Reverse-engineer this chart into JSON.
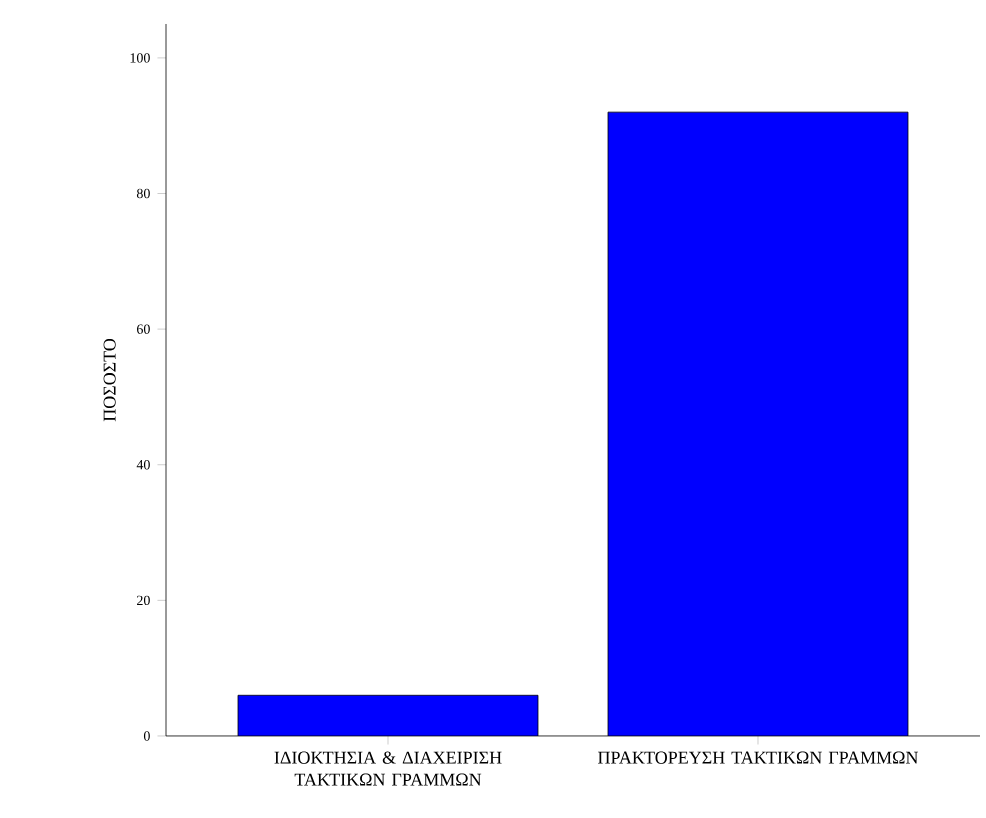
{
  "chart_data": {
    "type": "bar",
    "ylabel": "ΠΟΣΟΣΤΟ",
    "categories": [
      "ΙΔΙΟΚΤΗΣΙΑ & ΔΙΑΧΕΙΡΙΣΗ ΤΑΚΤΙΚΩΝ ΓΡΑΜΜΩΝ",
      "ΠΡΑΚΤΟΡΕΥΣΗ ΤΑΚΤΙΚΩΝ ΓΡΑΜΜΩΝ"
    ],
    "values": [
      6,
      92
    ],
    "color": "#0000ff",
    "ylim": [
      0,
      105
    ],
    "yticks": [
      0,
      20,
      40,
      60,
      80,
      100
    ]
  }
}
